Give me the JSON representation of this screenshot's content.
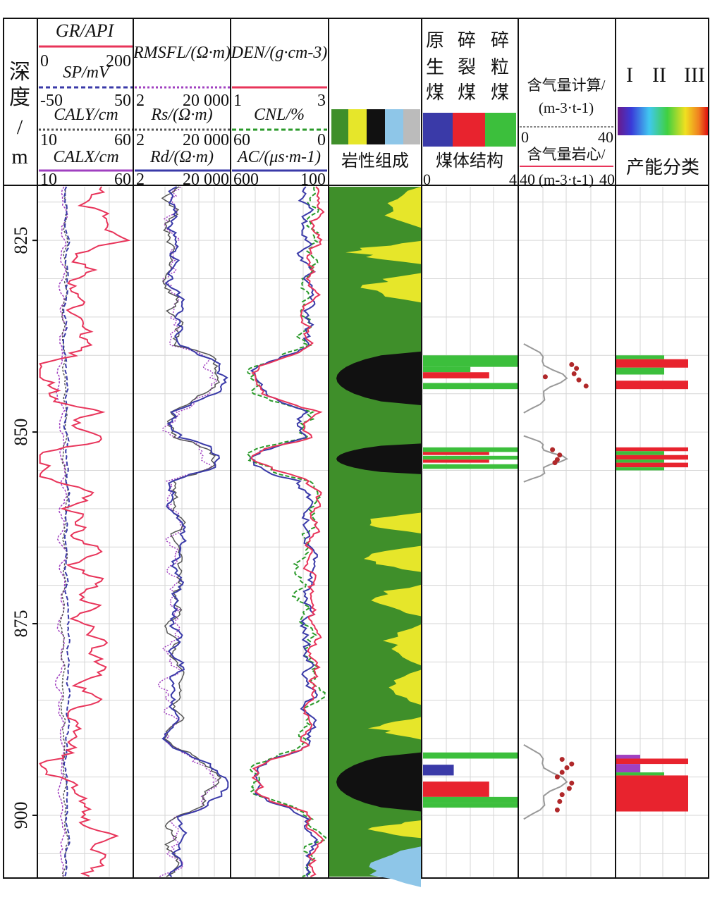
{
  "chart_data": {
    "type": "well-log",
    "depth_header": [
      "深",
      "度",
      "/",
      "m"
    ],
    "depth_range": [
      818,
      908
    ],
    "depth_ticks": [
      "825",
      "850",
      "875",
      "900"
    ],
    "tracks": [
      {
        "id": "track1",
        "curves": [
          {
            "name": "GR/API",
            "min": "0",
            "max": "200",
            "color": "#e8345a"
          },
          {
            "name": "SP/mV",
            "min": "-50",
            "max": "50",
            "color": "#3a3aa8"
          },
          {
            "name": "CALY/cm",
            "min": "10",
            "max": "60",
            "color": "#555555"
          },
          {
            "name": "CALX/cm",
            "min": "10",
            "max": "60",
            "color": "#a040c0"
          }
        ]
      },
      {
        "id": "track2",
        "curves": [
          {
            "name": "RMSFL/(Ω·m)",
            "min": "2",
            "max": "20 000",
            "color": "#a040c0"
          },
          {
            "name": "Rs/(Ω·m)",
            "min": "2",
            "max": "20 000",
            "color": "#555555"
          },
          {
            "name": "Rd/(Ω·m)",
            "min": "2",
            "max": "20 000",
            "color": "#3a3aa8"
          }
        ]
      },
      {
        "id": "track3",
        "curves": [
          {
            "name": "DEN/(g·cm-3)",
            "min": "1",
            "max": "3",
            "color": "#e8345a"
          },
          {
            "name": "CNL/%",
            "min": "60",
            "max": "0",
            "color": "#2a9a2a"
          },
          {
            "name": "AC/(μs·m-1)",
            "min": "600",
            "max": "100",
            "color": "#3a3aa8"
          }
        ]
      }
    ],
    "track_labels": {
      "lithology": "岩性组成",
      "coal_structure": "煤体结构",
      "gas_calc": "含气量计算/",
      "gas_calc_unit": "(m-3·t-1)",
      "gas_core": "含气量岩心/",
      "gas_core_unit": "(m-3·t-1)",
      "productivity": "产能分类"
    },
    "coal_structure_types": [
      {
        "label": [
          "原",
          "生",
          "煤"
        ],
        "color": "#3a3aa8"
      },
      {
        "label": [
          "碎",
          "裂",
          "煤"
        ],
        "color": "#e8232e"
      },
      {
        "label": [
          "碎",
          "粒",
          "煤"
        ],
        "color": "#3cbf3c"
      }
    ],
    "coal_structure_scale": [
      "0",
      "4"
    ],
    "gas_scale": [
      "0",
      "40"
    ],
    "gas_core_scale_left": "40",
    "productivity_classes": [
      "I",
      "II",
      "III"
    ],
    "coal_seams": [
      {
        "top": 839.5,
        "bottom": 846.5
      },
      {
        "top": 851.5,
        "bottom": 855.5
      },
      {
        "top": 891.8,
        "bottom": 899.5
      }
    ],
    "coal_structure_bars": [
      {
        "top": 840.0,
        "bottom": 841.5,
        "type": "碎粒煤",
        "value": 4.0
      },
      {
        "top": 841.5,
        "bottom": 842.2,
        "type": "碎粒煤",
        "value": 2.0
      },
      {
        "top": 842.2,
        "bottom": 843.0,
        "type": "碎裂煤",
        "value": 2.8
      },
      {
        "top": 843.6,
        "bottom": 844.4,
        "type": "碎粒煤",
        "value": 4.0
      },
      {
        "top": 852.0,
        "bottom": 852.6,
        "type": "碎粒煤",
        "value": 4.0
      },
      {
        "top": 852.6,
        "bottom": 853.0,
        "type": "碎裂煤",
        "value": 2.8
      },
      {
        "top": 853.1,
        "bottom": 853.6,
        "type": "碎粒煤",
        "value": 4.0
      },
      {
        "top": 853.6,
        "bottom": 854.0,
        "type": "碎裂煤",
        "value": 2.8
      },
      {
        "top": 854.2,
        "bottom": 854.8,
        "type": "碎粒煤",
        "value": 4.0
      },
      {
        "top": 891.8,
        "bottom": 892.6,
        "type": "碎粒煤",
        "value": 4.0
      },
      {
        "top": 893.4,
        "bottom": 894.8,
        "type": "原生煤",
        "value": 1.3
      },
      {
        "top": 895.6,
        "bottom": 897.6,
        "type": "碎裂煤",
        "value": 2.8
      },
      {
        "top": 897.6,
        "bottom": 898.4,
        "type": "碎粒煤",
        "value": 4.0
      },
      {
        "top": 898.4,
        "bottom": 899.0,
        "type": "碎粒煤",
        "value": 4.0
      }
    ],
    "gas_core_points": [
      {
        "depth": 841.2,
        "value": 22
      },
      {
        "depth": 841.7,
        "value": 24
      },
      {
        "depth": 842.4,
        "value": 23
      },
      {
        "depth": 842.8,
        "value": 11
      },
      {
        "depth": 843.2,
        "value": 25
      },
      {
        "depth": 844.0,
        "value": 28
      },
      {
        "depth": 852.3,
        "value": 14
      },
      {
        "depth": 853.0,
        "value": 17
      },
      {
        "depth": 853.6,
        "value": 16
      },
      {
        "depth": 854.0,
        "value": 15
      },
      {
        "depth": 892.7,
        "value": 18
      },
      {
        "depth": 893.3,
        "value": 22
      },
      {
        "depth": 893.8,
        "value": 20
      },
      {
        "depth": 894.4,
        "value": 18
      },
      {
        "depth": 895.0,
        "value": 16
      },
      {
        "depth": 895.8,
        "value": 22
      },
      {
        "depth": 896.5,
        "value": 21
      },
      {
        "depth": 897.3,
        "value": 18
      },
      {
        "depth": 898.2,
        "value": 17
      },
      {
        "depth": 899.3,
        "value": 16
      }
    ],
    "productivity_bars": [
      {
        "top": 840.0,
        "bottom": 840.5,
        "color": "#3cbf3c",
        "value": 2.0
      },
      {
        "top": 840.5,
        "bottom": 841.6,
        "color": "#e8232e",
        "value": 3.0
      },
      {
        "top": 841.6,
        "bottom": 842.5,
        "color": "#3cbf3c",
        "value": 2.0
      },
      {
        "top": 842.5,
        "bottom": 843.3,
        "color": "#ffffff",
        "value": 0
      },
      {
        "top": 843.3,
        "bottom": 844.4,
        "color": "#e8232e",
        "value": 3.0
      },
      {
        "top": 852.0,
        "bottom": 852.5,
        "color": "#e8232e",
        "value": 3.0
      },
      {
        "top": 852.5,
        "bottom": 853.0,
        "color": "#3cbf3c",
        "value": 2.0
      },
      {
        "top": 853.0,
        "bottom": 853.6,
        "color": "#e8232e",
        "value": 3.0
      },
      {
        "top": 853.6,
        "bottom": 854.0,
        "color": "#3cbf3c",
        "value": 2.0
      },
      {
        "top": 854.0,
        "bottom": 854.6,
        "color": "#e8232e",
        "value": 3.0
      },
      {
        "top": 854.6,
        "bottom": 855.0,
        "color": "#3cbf3c",
        "value": 2.0
      },
      {
        "top": 892.1,
        "bottom": 892.6,
        "color": "#a040c0",
        "value": 1.0
      },
      {
        "top": 892.6,
        "bottom": 893.3,
        "color": "#e8232e",
        "value": 3.0
      },
      {
        "top": 893.3,
        "bottom": 894.4,
        "color": "#a040c0",
        "value": 1.0
      },
      {
        "top": 894.4,
        "bottom": 894.8,
        "color": "#3cbf3c",
        "value": 2.0
      },
      {
        "top": 894.8,
        "bottom": 899.5,
        "color": "#e8232e",
        "value": 3.0
      }
    ]
  }
}
